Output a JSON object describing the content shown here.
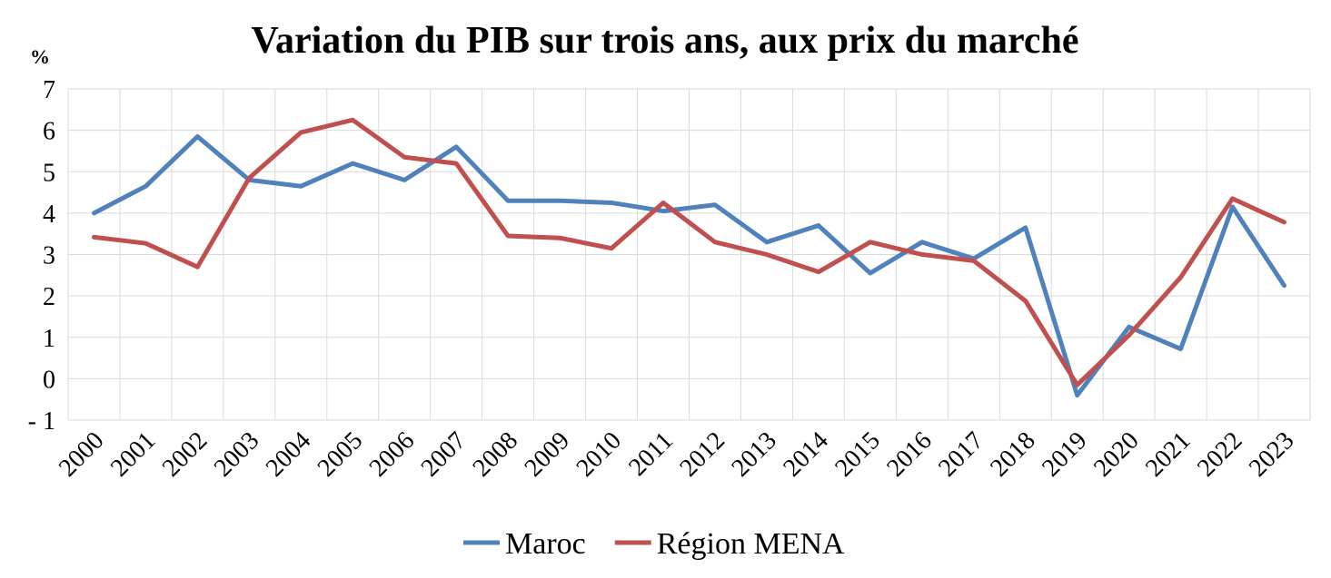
{
  "chart_data": {
    "type": "line",
    "title": "Variation du PIB sur trois ans, aux prix du marché",
    "y_unit": "%",
    "ylim": [
      -1,
      7
    ],
    "yticks": [
      "- 1",
      "0",
      "1",
      "2",
      "3",
      "4",
      "5",
      "6",
      "7"
    ],
    "grid": true,
    "legend_position": "bottom",
    "categories": [
      "2000",
      "2001",
      "2002",
      "2003",
      "2004",
      "2005",
      "2006",
      "2007",
      "2008",
      "2009",
      "2010",
      "2011",
      "2012",
      "2013",
      "2014",
      "2015",
      "2016",
      "2017",
      "2018",
      "2019",
      "2020",
      "2021",
      "2022",
      "2023"
    ],
    "series": [
      {
        "name": "Maroc",
        "color": "#4f81bd",
        "values": [
          4.0,
          4.65,
          5.85,
          4.8,
          4.65,
          5.2,
          4.8,
          5.6,
          4.3,
          4.3,
          4.25,
          4.05,
          4.2,
          3.3,
          3.7,
          2.55,
          3.3,
          2.9,
          3.65,
          -0.4,
          1.25,
          0.72,
          4.15,
          2.25
        ]
      },
      {
        "name": "Région MENA",
        "color": "#c0504d",
        "values": [
          3.42,
          3.27,
          2.7,
          4.85,
          5.95,
          6.25,
          5.35,
          5.2,
          3.45,
          3.4,
          3.15,
          4.25,
          3.3,
          3.0,
          2.58,
          3.3,
          3.0,
          2.85,
          1.88,
          -0.15,
          1.05,
          2.45,
          4.35,
          3.78
        ]
      }
    ]
  }
}
